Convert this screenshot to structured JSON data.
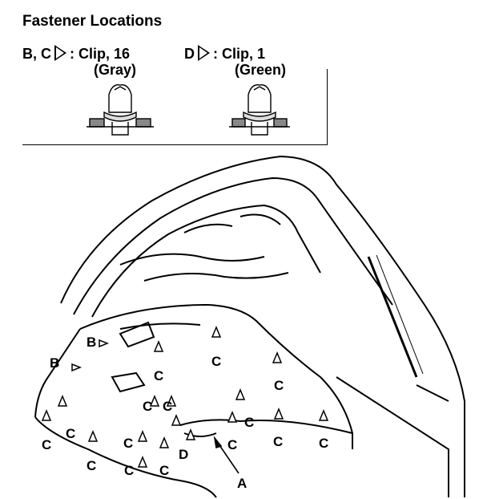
{
  "title": "Fastener Locations",
  "legend": {
    "bc": {
      "prefix": "B, C",
      "label": ": Clip, 16",
      "color": "(Gray)"
    },
    "d": {
      "prefix": "D",
      "label": ": Clip, 1",
      "color": "(Green)"
    }
  },
  "callouts": {
    "a": "A",
    "b": "B",
    "c": "C",
    "d": "D"
  }
}
